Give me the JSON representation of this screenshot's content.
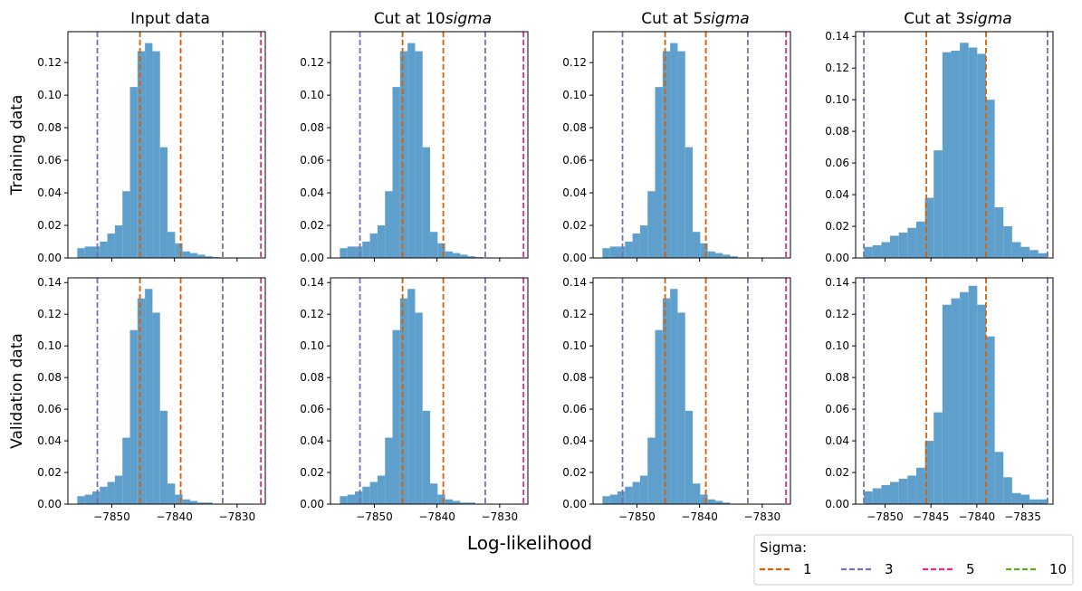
{
  "figure": {
    "xlabel": "Log-likelihood",
    "row_labels": [
      "Training data",
      "Validation data"
    ],
    "column_titles": [
      {
        "text": "Input data",
        "sigma": ""
      },
      {
        "text": "Cut at 10",
        "sigma": "sigma"
      },
      {
        "text": "Cut at 5",
        "sigma": "sigma"
      },
      {
        "text": "Cut at 3",
        "sigma": "sigma"
      }
    ]
  },
  "legend": {
    "title": "Sigma:",
    "entries": [
      {
        "label": "1",
        "color": "#d95f02"
      },
      {
        "label": "3",
        "color": "#7570b3"
      },
      {
        "label": "5",
        "color": "#e7298a"
      },
      {
        "label": "10",
        "color": "#66a61e"
      }
    ]
  },
  "colors": {
    "bar": "#5f9fcc"
  },
  "chart_data": [
    {
      "type": "bar",
      "title": "Input data",
      "row": "Training data",
      "x_ticks": [
        -7850,
        -7840,
        -7830
      ],
      "show_x_ticks": false,
      "y_ticks": [
        0.0,
        0.02,
        0.04,
        0.06,
        0.08,
        0.1,
        0.12
      ],
      "ylim": [
        0,
        0.139
      ],
      "xlim": [
        -7857,
        -7825.5
      ],
      "bins": {
        "start": -7855.5,
        "width": 1.2,
        "values": [
          0.006,
          0.007,
          0.007,
          0.01,
          0.015,
          0.02,
          0.041,
          0.105,
          0.127,
          0.132,
          0.127,
          0.068,
          0.016,
          0.009,
          0.004,
          0.003,
          0.002,
          0.001,
          0.0005
        ]
      },
      "sigma_lines": [
        {
          "sigma": "1",
          "x": [
            -7845.5,
            -7839
          ]
        },
        {
          "sigma": "3",
          "x": [
            -7852.3,
            -7832.3
          ]
        },
        {
          "sigma": "5",
          "x": [
            -7826.2
          ]
        }
      ]
    },
    {
      "type": "bar",
      "title": "Cut at 10sigma",
      "row": "Training data",
      "x_ticks": [
        -7850,
        -7840,
        -7830
      ],
      "show_x_ticks": false,
      "y_ticks": [
        0.0,
        0.02,
        0.04,
        0.06,
        0.08,
        0.1,
        0.12
      ],
      "ylim": [
        0,
        0.139
      ],
      "xlim": [
        -7857,
        -7825.5
      ],
      "bins": {
        "start": -7855.5,
        "width": 1.2,
        "values": [
          0.006,
          0.007,
          0.007,
          0.01,
          0.015,
          0.02,
          0.041,
          0.105,
          0.127,
          0.132,
          0.127,
          0.068,
          0.016,
          0.009,
          0.004,
          0.003,
          0.002,
          0.001,
          0.0005
        ]
      },
      "sigma_lines": [
        {
          "sigma": "1",
          "x": [
            -7845.5,
            -7839
          ]
        },
        {
          "sigma": "3",
          "x": [
            -7852.3,
            -7832.3
          ]
        },
        {
          "sigma": "5",
          "x": [
            -7826.2
          ]
        }
      ]
    },
    {
      "type": "bar",
      "title": "Cut at 5sigma",
      "row": "Training data",
      "x_ticks": [
        -7850,
        -7840,
        -7830
      ],
      "show_x_ticks": false,
      "y_ticks": [
        0.0,
        0.02,
        0.04,
        0.06,
        0.08,
        0.1,
        0.12
      ],
      "ylim": [
        0,
        0.139
      ],
      "xlim": [
        -7857,
        -7825.5
      ],
      "bins": {
        "start": -7855.5,
        "width": 1.2,
        "values": [
          0.006,
          0.007,
          0.007,
          0.01,
          0.015,
          0.02,
          0.041,
          0.105,
          0.127,
          0.132,
          0.127,
          0.068,
          0.016,
          0.009,
          0.004,
          0.003,
          0.002,
          0.001
        ]
      },
      "sigma_lines": [
        {
          "sigma": "1",
          "x": [
            -7845.5,
            -7839
          ]
        },
        {
          "sigma": "3",
          "x": [
            -7852.3,
            -7832.3
          ]
        },
        {
          "sigma": "5",
          "x": [
            -7826.2
          ]
        }
      ]
    },
    {
      "type": "bar",
      "title": "Cut at 3sigma",
      "row": "Training data",
      "x_ticks": [
        -7850,
        -7845,
        -7840,
        -7835
      ],
      "show_x_ticks": false,
      "y_ticks": [
        0.0,
        0.02,
        0.04,
        0.06,
        0.08,
        0.1,
        0.12,
        0.14
      ],
      "ylim": [
        0,
        0.143
      ],
      "xlim": [
        -7853.2,
        -7831.7
      ],
      "bins": {
        "start": -7852.3,
        "width": 0.95,
        "values": [
          0.007,
          0.008,
          0.01,
          0.014,
          0.016,
          0.019,
          0.023,
          0.038,
          0.068,
          0.13,
          0.131,
          0.136,
          0.133,
          0.129,
          0.1,
          0.032,
          0.02,
          0.01,
          0.007,
          0.005,
          0.003
        ]
      },
      "sigma_lines": [
        {
          "sigma": "1",
          "x": [
            -7845.5,
            -7839
          ]
        },
        {
          "sigma": "3",
          "x": [
            -7852.3,
            -7832.3
          ]
        }
      ]
    },
    {
      "type": "bar",
      "title": "Input data",
      "row": "Validation data",
      "x_ticks": [
        -7850,
        -7840,
        -7830
      ],
      "show_x_ticks": true,
      "y_ticks": [
        0.0,
        0.02,
        0.04,
        0.06,
        0.08,
        0.1,
        0.12,
        0.14
      ],
      "ylim": [
        0,
        0.143
      ],
      "xlim": [
        -7857,
        -7825.5
      ],
      "bins": {
        "start": -7855.5,
        "width": 1.2,
        "values": [
          0.005,
          0.006,
          0.008,
          0.011,
          0.014,
          0.018,
          0.042,
          0.11,
          0.13,
          0.136,
          0.121,
          0.059,
          0.013,
          0.006,
          0.003,
          0.002,
          0.001,
          0.001
        ]
      },
      "sigma_lines": [
        {
          "sigma": "1",
          "x": [
            -7845.5,
            -7839
          ]
        },
        {
          "sigma": "3",
          "x": [
            -7852.3,
            -7832.3
          ]
        },
        {
          "sigma": "5",
          "x": [
            -7826.2
          ]
        }
      ]
    },
    {
      "type": "bar",
      "title": "Cut at 10sigma",
      "row": "Validation data",
      "x_ticks": [
        -7850,
        -7840,
        -7830
      ],
      "show_x_ticks": true,
      "y_ticks": [
        0.0,
        0.02,
        0.04,
        0.06,
        0.08,
        0.1,
        0.12,
        0.14
      ],
      "ylim": [
        0,
        0.143
      ],
      "xlim": [
        -7857,
        -7825.5
      ],
      "bins": {
        "start": -7855.5,
        "width": 1.2,
        "values": [
          0.005,
          0.006,
          0.008,
          0.011,
          0.014,
          0.018,
          0.042,
          0.11,
          0.13,
          0.136,
          0.121,
          0.059,
          0.013,
          0.006,
          0.003,
          0.002,
          0.001,
          0.001
        ]
      },
      "sigma_lines": [
        {
          "sigma": "1",
          "x": [
            -7845.5,
            -7839
          ]
        },
        {
          "sigma": "3",
          "x": [
            -7852.3,
            -7832.3
          ]
        },
        {
          "sigma": "5",
          "x": [
            -7826.2
          ]
        }
      ]
    },
    {
      "type": "bar",
      "title": "Cut at 5sigma",
      "row": "Validation data",
      "x_ticks": [
        -7850,
        -7840,
        -7830
      ],
      "show_x_ticks": true,
      "y_ticks": [
        0.0,
        0.02,
        0.04,
        0.06,
        0.08,
        0.1,
        0.12,
        0.14
      ],
      "ylim": [
        0,
        0.143
      ],
      "xlim": [
        -7857,
        -7825.5
      ],
      "bins": {
        "start": -7855.5,
        "width": 1.2,
        "values": [
          0.005,
          0.006,
          0.008,
          0.011,
          0.014,
          0.018,
          0.042,
          0.11,
          0.13,
          0.136,
          0.121,
          0.059,
          0.013,
          0.006,
          0.003,
          0.002,
          0.001
        ]
      },
      "sigma_lines": [
        {
          "sigma": "1",
          "x": [
            -7845.5,
            -7839
          ]
        },
        {
          "sigma": "3",
          "x": [
            -7852.3,
            -7832.3
          ]
        },
        {
          "sigma": "5",
          "x": [
            -7826.2
          ]
        }
      ]
    },
    {
      "type": "bar",
      "title": "Cut at 3sigma",
      "row": "Validation data",
      "x_ticks": [
        -7850,
        -7845,
        -7840,
        -7835
      ],
      "show_x_ticks": true,
      "y_ticks": [
        0.0,
        0.02,
        0.04,
        0.06,
        0.08,
        0.1,
        0.12,
        0.14
      ],
      "ylim": [
        0,
        0.143
      ],
      "xlim": [
        -7853.2,
        -7831.7
      ],
      "bins": {
        "start": -7852.3,
        "width": 0.95,
        "values": [
          0.008,
          0.01,
          0.012,
          0.014,
          0.016,
          0.018,
          0.023,
          0.04,
          0.058,
          0.126,
          0.13,
          0.134,
          0.138,
          0.126,
          0.106,
          0.033,
          0.017,
          0.007,
          0.006,
          0.003,
          0.003
        ]
      },
      "sigma_lines": [
        {
          "sigma": "1",
          "x": [
            -7845.5,
            -7839
          ]
        },
        {
          "sigma": "3",
          "x": [
            -7852.3,
            -7832.3
          ]
        }
      ]
    }
  ]
}
